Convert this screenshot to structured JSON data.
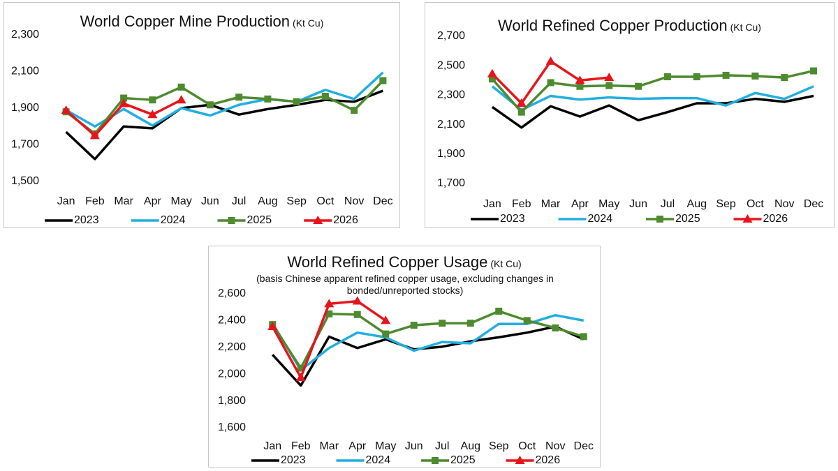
{
  "chart_data": [
    {
      "type": "line",
      "title": "World Copper Mine Production",
      "unit": "(Kt Cu)",
      "categories": [
        "Jan",
        "Feb",
        "Mar",
        "Apr",
        "May",
        "Jun",
        "Jul",
        "Aug",
        "Sep",
        "Oct",
        "Nov",
        "Dec"
      ],
      "ylim": [
        1500,
        2300
      ],
      "yticks": [
        {
          "value": 1500,
          "label": "1,500"
        },
        {
          "value": 1700,
          "label": "1,700"
        },
        {
          "value": 1900,
          "label": "1,900"
        },
        {
          "value": 2100,
          "label": "2,100"
        },
        {
          "value": 2300,
          "label": "2,300"
        }
      ],
      "grid": false,
      "legend": "bottom",
      "series": [
        {
          "name": "2023",
          "color": "#000000",
          "marker": "none",
          "values": [
            1770,
            1622,
            1800,
            1790,
            1900,
            1918,
            1865,
            1895,
            1918,
            1945,
            1935,
            1995
          ]
        },
        {
          "name": "2024",
          "color": "#22aee0",
          "marker": "none",
          "values": [
            1890,
            1800,
            1895,
            1805,
            1900,
            1860,
            1918,
            1950,
            1935,
            2000,
            1950,
            2095
          ]
        },
        {
          "name": "2025",
          "color": "#4e8a2e",
          "marker": "square",
          "values": [
            1880,
            1760,
            1955,
            1945,
            2015,
            1918,
            1960,
            1950,
            1935,
            1965,
            1888,
            2050
          ]
        },
        {
          "name": "2026",
          "color": "#e8141c",
          "marker": "triangle",
          "values": [
            1888,
            1750,
            1925,
            1865,
            1945,
            null,
            null,
            null,
            null,
            null,
            null,
            null
          ]
        }
      ]
    },
    {
      "type": "line",
      "title": "World Refined Copper Production",
      "unit": "(Kt Cu)",
      "categories": [
        "Jan",
        "Feb",
        "Mar",
        "Apr",
        "May",
        "Jun",
        "Jul",
        "Aug",
        "Sep",
        "Oct",
        "Nov",
        "Dec"
      ],
      "ylim": [
        1700,
        2700
      ],
      "yticks": [
        {
          "value": 1700,
          "label": "1,700"
        },
        {
          "value": 1900,
          "label": "1,900"
        },
        {
          "value": 2100,
          "label": "2,100"
        },
        {
          "value": 2300,
          "label": "2,300"
        },
        {
          "value": 2500,
          "label": "2,500"
        },
        {
          "value": 2700,
          "label": "2,700"
        }
      ],
      "grid": false,
      "legend": "bottom",
      "series": [
        {
          "name": "2023",
          "color": "#000000",
          "marker": "none",
          "values": [
            2220,
            2080,
            2225,
            2155,
            2230,
            2130,
            2185,
            2245,
            2245,
            2275,
            2255,
            2295
          ]
        },
        {
          "name": "2024",
          "color": "#22aee0",
          "marker": "none",
          "values": [
            2360,
            2200,
            2295,
            2270,
            2285,
            2275,
            2280,
            2280,
            2230,
            2315,
            2275,
            2360
          ]
        },
        {
          "name": "2025",
          "color": "#4e8a2e",
          "marker": "square",
          "values": [
            2410,
            2185,
            2385,
            2360,
            2365,
            2360,
            2425,
            2425,
            2435,
            2430,
            2420,
            2465
          ]
        },
        {
          "name": "2026",
          "color": "#e8141c",
          "marker": "triangle",
          "values": [
            2445,
            2245,
            2530,
            2400,
            2420,
            null,
            null,
            null,
            null,
            null,
            null,
            null
          ]
        }
      ]
    },
    {
      "type": "line",
      "title": "World Refined Copper Usage",
      "unit": "(Kt Cu)",
      "subtitle": "(basis Chinese apparent refined copper usage, excluding changes in bonded/unreported stocks)",
      "categories": [
        "Jan",
        "Feb",
        "Mar",
        "Apr",
        "May",
        "Jun",
        "Jul",
        "Aug",
        "Sep",
        "Oct",
        "Nov",
        "Dec"
      ],
      "ylim": [
        1600,
        2600
      ],
      "yticks": [
        {
          "value": 1600,
          "label": "1,600"
        },
        {
          "value": 1800,
          "label": "1,800"
        },
        {
          "value": 2000,
          "label": "2,000"
        },
        {
          "value": 2200,
          "label": "2,200"
        },
        {
          "value": 2400,
          "label": "2,400"
        },
        {
          "value": 2600,
          "label": "2,600"
        }
      ],
      "grid": false,
      "legend": "bottom",
      "series": [
        {
          "name": "2023",
          "color": "#000000",
          "marker": "none",
          "values": [
            2145,
            1915,
            2280,
            2195,
            2260,
            2185,
            2205,
            2245,
            2275,
            2310,
            2355,
            2260
          ]
        },
        {
          "name": "2024",
          "color": "#22aee0",
          "marker": "none",
          "values": [
            2380,
            2030,
            2195,
            2310,
            2275,
            2175,
            2240,
            2230,
            2375,
            2375,
            2440,
            2400
          ]
        },
        {
          "name": "2025",
          "color": "#4e8a2e",
          "marker": "square",
          "values": [
            2370,
            2045,
            2450,
            2445,
            2300,
            2365,
            2380,
            2380,
            2470,
            2400,
            2345,
            2280
          ]
        },
        {
          "name": "2026",
          "color": "#e8141c",
          "marker": "triangle",
          "values": [
            2355,
            1975,
            2525,
            2545,
            2400,
            null,
            null,
            null,
            null,
            null,
            null,
            null
          ]
        }
      ]
    }
  ]
}
